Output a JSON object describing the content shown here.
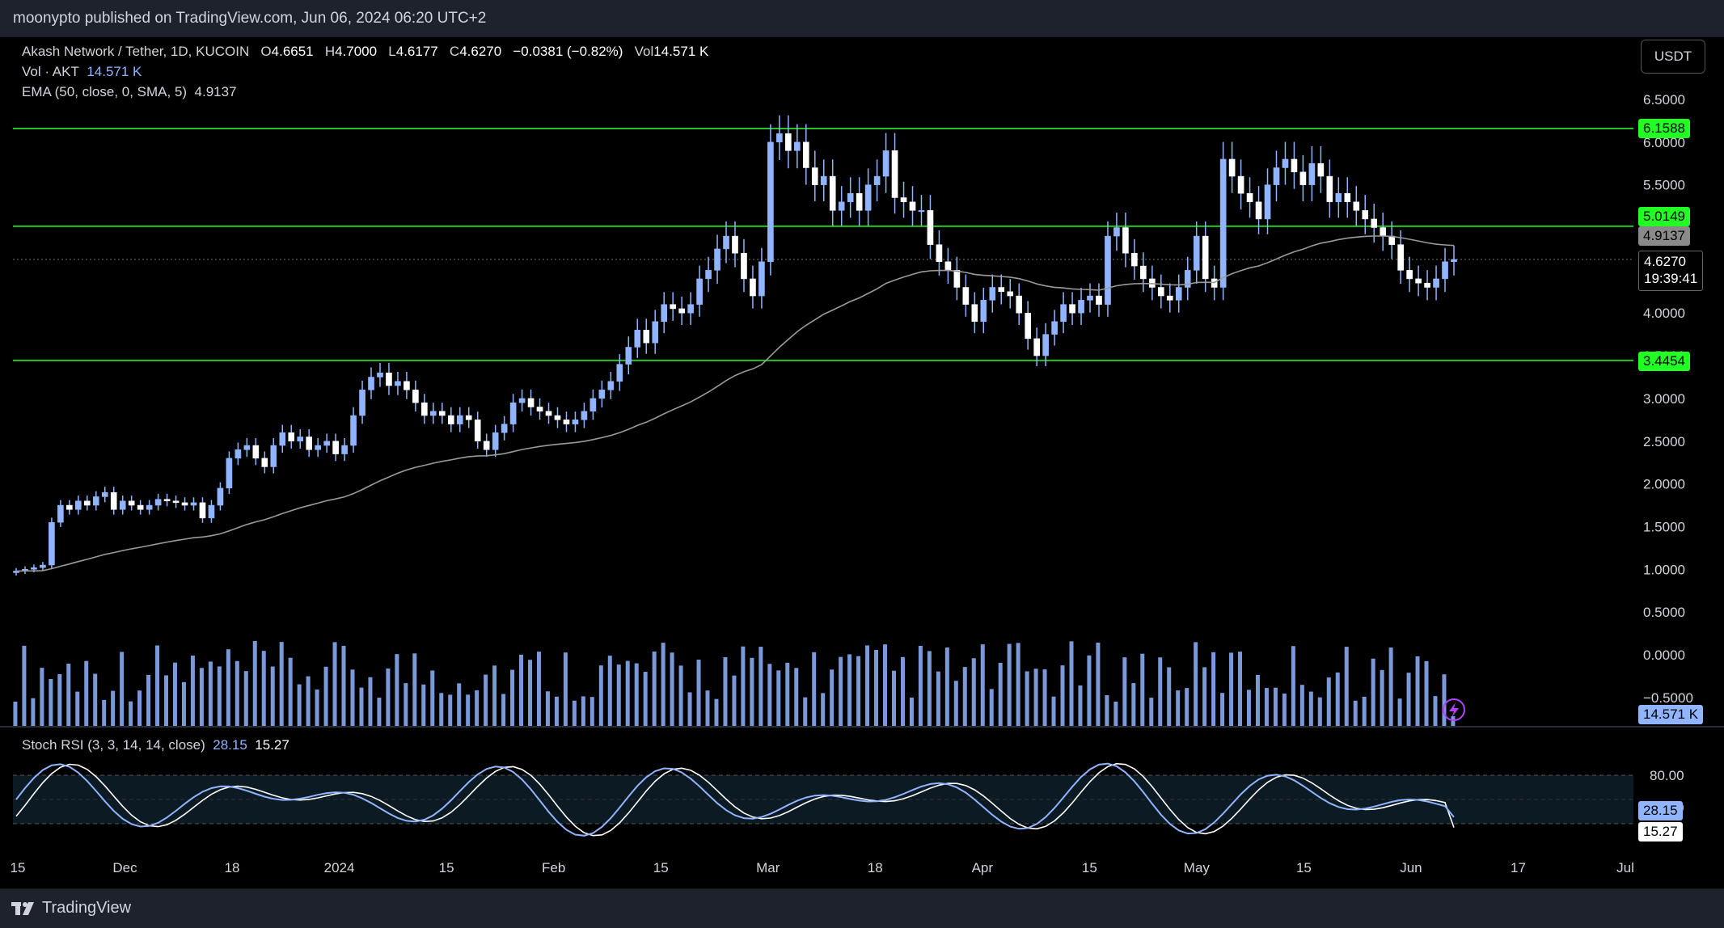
{
  "header": {
    "text": "moonypto published on TradingView.com, Jun 06, 2024 06:20 UTC+2"
  },
  "footer": {
    "brand": "TradingView"
  },
  "legend": {
    "symbol": "Akash Network / Tether, 1D, KUCOIN",
    "o_label": "O",
    "o": "4.6651",
    "h_label": "H",
    "h": "4.7000",
    "l_label": "L",
    "l": "4.6177",
    "c_label": "C",
    "c": "4.6270",
    "change": "−0.0381 (−0.82%)",
    "vol_label": "Vol",
    "vol": "14.571 K",
    "vol_line": "Vol · AKT",
    "vol_value": "14.571 K",
    "ema_line": "EMA (50, close, 0, SMA, 5)",
    "ema_value": "4.9137",
    "stoch_line": "Stoch RSI (3, 3, 14, 14, close)",
    "stoch_k": "28.15",
    "stoch_d": "15.27"
  },
  "currency_button": "USDT",
  "price_labels": {
    "level_high": "6.1588",
    "level_mid": "5.0149",
    "ema": "4.9137",
    "last": "4.6270",
    "countdown": "19:39:41",
    "level_low": "3.4454",
    "volume": "14.571 K",
    "stoch_k": "28.15",
    "stoch_d": "15.27"
  },
  "colors": {
    "background": "#000000",
    "candle": "#90b4ff",
    "level_line": "#22c522",
    "level_label": "#22ff22",
    "ema_line": "#9a9a9a",
    "stoch_k": "#90b4ff",
    "stoch_d": "#ffffff",
    "stoch_band": "#0c1a24"
  },
  "chart_data": [
    {
      "type": "candlestick",
      "title": "Akash Network / Tether, 1D, KUCOIN",
      "y_ticks": [
        "6.5000",
        "6.0000",
        "5.5000",
        "5.0000",
        "4.0000",
        "3.5000",
        "3.0000",
        "2.5000",
        "2.0000",
        "1.5000",
        "1.0000",
        "0.5000",
        "0.0000",
        "−0.5000"
      ],
      "x_ticks": [
        "15",
        "Dec",
        "18",
        "2024",
        "15",
        "Feb",
        "15",
        "Mar",
        "18",
        "Apr",
        "15",
        "May",
        "15",
        "Jun",
        "17",
        "Jul"
      ],
      "ylim": [
        -0.5,
        7.0
      ],
      "horizontal_levels": [
        6.1588,
        5.0149,
        3.4454
      ],
      "last_price": 4.627,
      "series_close": [
        0.98,
        1.0,
        1.02,
        1.05,
        1.55,
        1.75,
        1.7,
        1.8,
        1.75,
        1.85,
        1.9,
        1.7,
        1.8,
        1.75,
        1.7,
        1.75,
        1.82,
        1.8,
        1.78,
        1.75,
        1.78,
        1.6,
        1.75,
        1.95,
        2.3,
        2.4,
        2.45,
        2.3,
        2.2,
        2.45,
        2.6,
        2.5,
        2.55,
        2.4,
        2.45,
        2.5,
        2.35,
        2.45,
        2.8,
        3.1,
        3.25,
        3.3,
        3.15,
        3.2,
        3.1,
        2.95,
        2.8,
        2.85,
        2.8,
        2.7,
        2.8,
        2.75,
        2.5,
        2.4,
        2.6,
        2.7,
        2.95,
        3.0,
        2.9,
        2.85,
        2.8,
        2.75,
        2.7,
        2.75,
        2.85,
        3.0,
        3.1,
        3.2,
        3.4,
        3.6,
        3.8,
        3.65,
        3.9,
        4.1,
        4.05,
        4.0,
        4.1,
        4.4,
        4.5,
        4.75,
        4.9,
        4.7,
        4.4,
        4.2,
        4.6,
        6.0,
        6.1,
        5.9,
        6.0,
        5.7,
        5.5,
        5.6,
        5.2,
        5.3,
        5.4,
        5.2,
        5.5,
        5.6,
        5.9,
        5.35,
        5.3,
        5.2,
        5.2,
        4.8,
        4.6,
        4.5,
        4.3,
        4.1,
        3.9,
        4.15,
        4.3,
        4.25,
        4.2,
        4.0,
        3.7,
        3.5,
        3.75,
        3.9,
        4.1,
        4.0,
        4.15,
        4.2,
        4.1,
        4.9,
        5.0,
        4.7,
        4.55,
        4.4,
        4.3,
        4.2,
        4.15,
        4.3,
        4.5,
        4.9,
        4.4,
        4.3,
        5.8,
        5.6,
        5.4,
        5.3,
        5.1,
        5.5,
        5.7,
        5.8,
        5.65,
        5.5,
        5.75,
        5.6,
        5.3,
        5.4,
        5.3,
        5.2,
        5.1,
        5.0,
        4.9,
        4.8,
        4.5,
        4.4,
        4.35,
        4.3,
        4.4,
        4.6,
        4.627
      ]
    },
    {
      "type": "bar",
      "title": "Vol · AKT",
      "last_value": "14.571 K"
    },
    {
      "type": "line",
      "title": "Stoch RSI (3, 3, 14, 14, close)",
      "y_ticks": [
        "80.00",
        "40.00"
      ],
      "ylim": [
        0,
        100
      ],
      "band": [
        20,
        80
      ],
      "series": [
        {
          "name": "K",
          "last": 28.15
        },
        {
          "name": "D",
          "last": 15.27
        }
      ]
    }
  ]
}
